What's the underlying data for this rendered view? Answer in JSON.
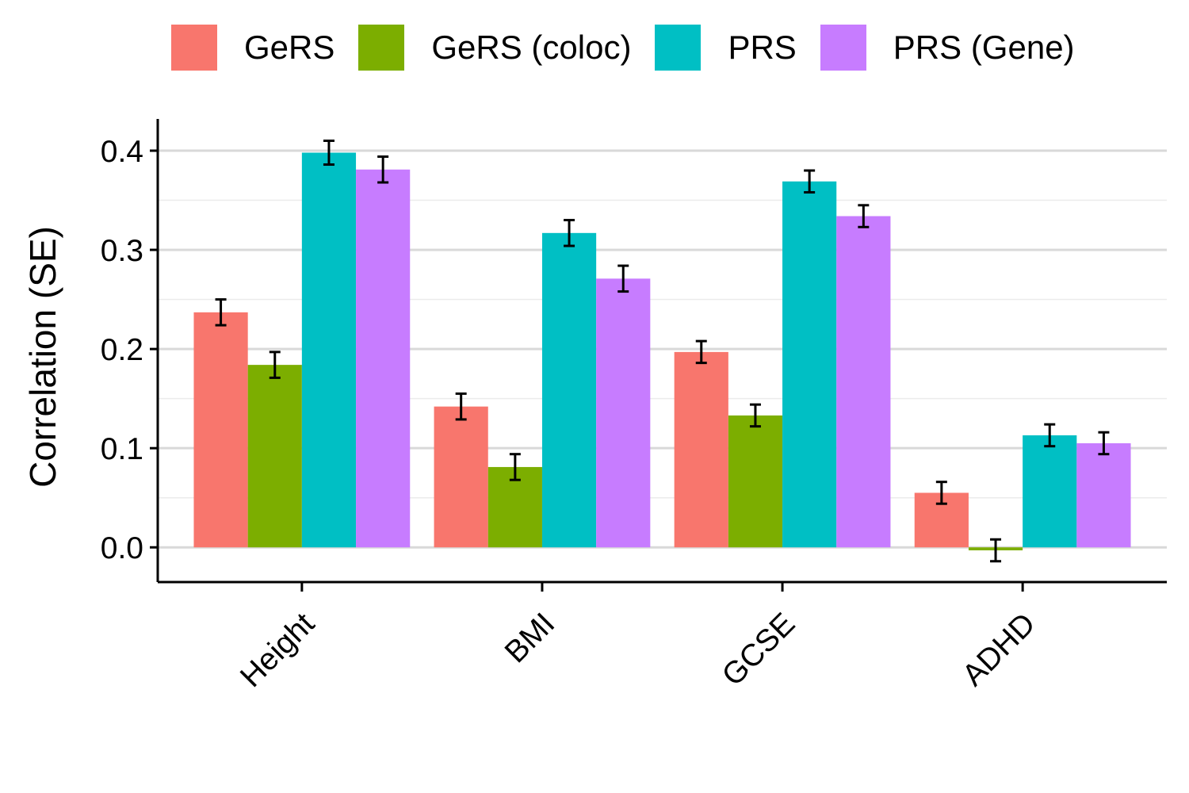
{
  "chart_data": {
    "type": "bar",
    "title": "",
    "xlabel": "",
    "ylabel": "Correlation (SE)",
    "ylim": [
      -0.035,
      0.432
    ],
    "yticks": [
      "0.0",
      "0.1",
      "0.2",
      "0.3",
      "0.4"
    ],
    "ytick_values": [
      0,
      0.1,
      0.2,
      0.3,
      0.4
    ],
    "grid": true,
    "legend_position": "top",
    "categories": [
      "Height",
      "BMI",
      "GCSE",
      "ADHD"
    ],
    "series": [
      {
        "name": "GeRS",
        "color": "#F8766D",
        "values": [
          0.237,
          0.142,
          0.197,
          0.055
        ],
        "errors": [
          0.013,
          0.013,
          0.011,
          0.011
        ]
      },
      {
        "name": "GeRS (coloc)",
        "color": "#7CAE00",
        "values": [
          0.184,
          0.081,
          0.133,
          -0.003
        ],
        "errors": [
          0.013,
          0.013,
          0.011,
          0.011
        ]
      },
      {
        "name": "PRS",
        "color": "#00BFC4",
        "values": [
          0.398,
          0.317,
          0.369,
          0.113
        ],
        "errors": [
          0.012,
          0.013,
          0.011,
          0.011
        ]
      },
      {
        "name": "PRS (Gene)",
        "color": "#C77CFF",
        "values": [
          0.381,
          0.271,
          0.334,
          0.105
        ],
        "errors": [
          0.013,
          0.013,
          0.011,
          0.011
        ]
      }
    ]
  }
}
